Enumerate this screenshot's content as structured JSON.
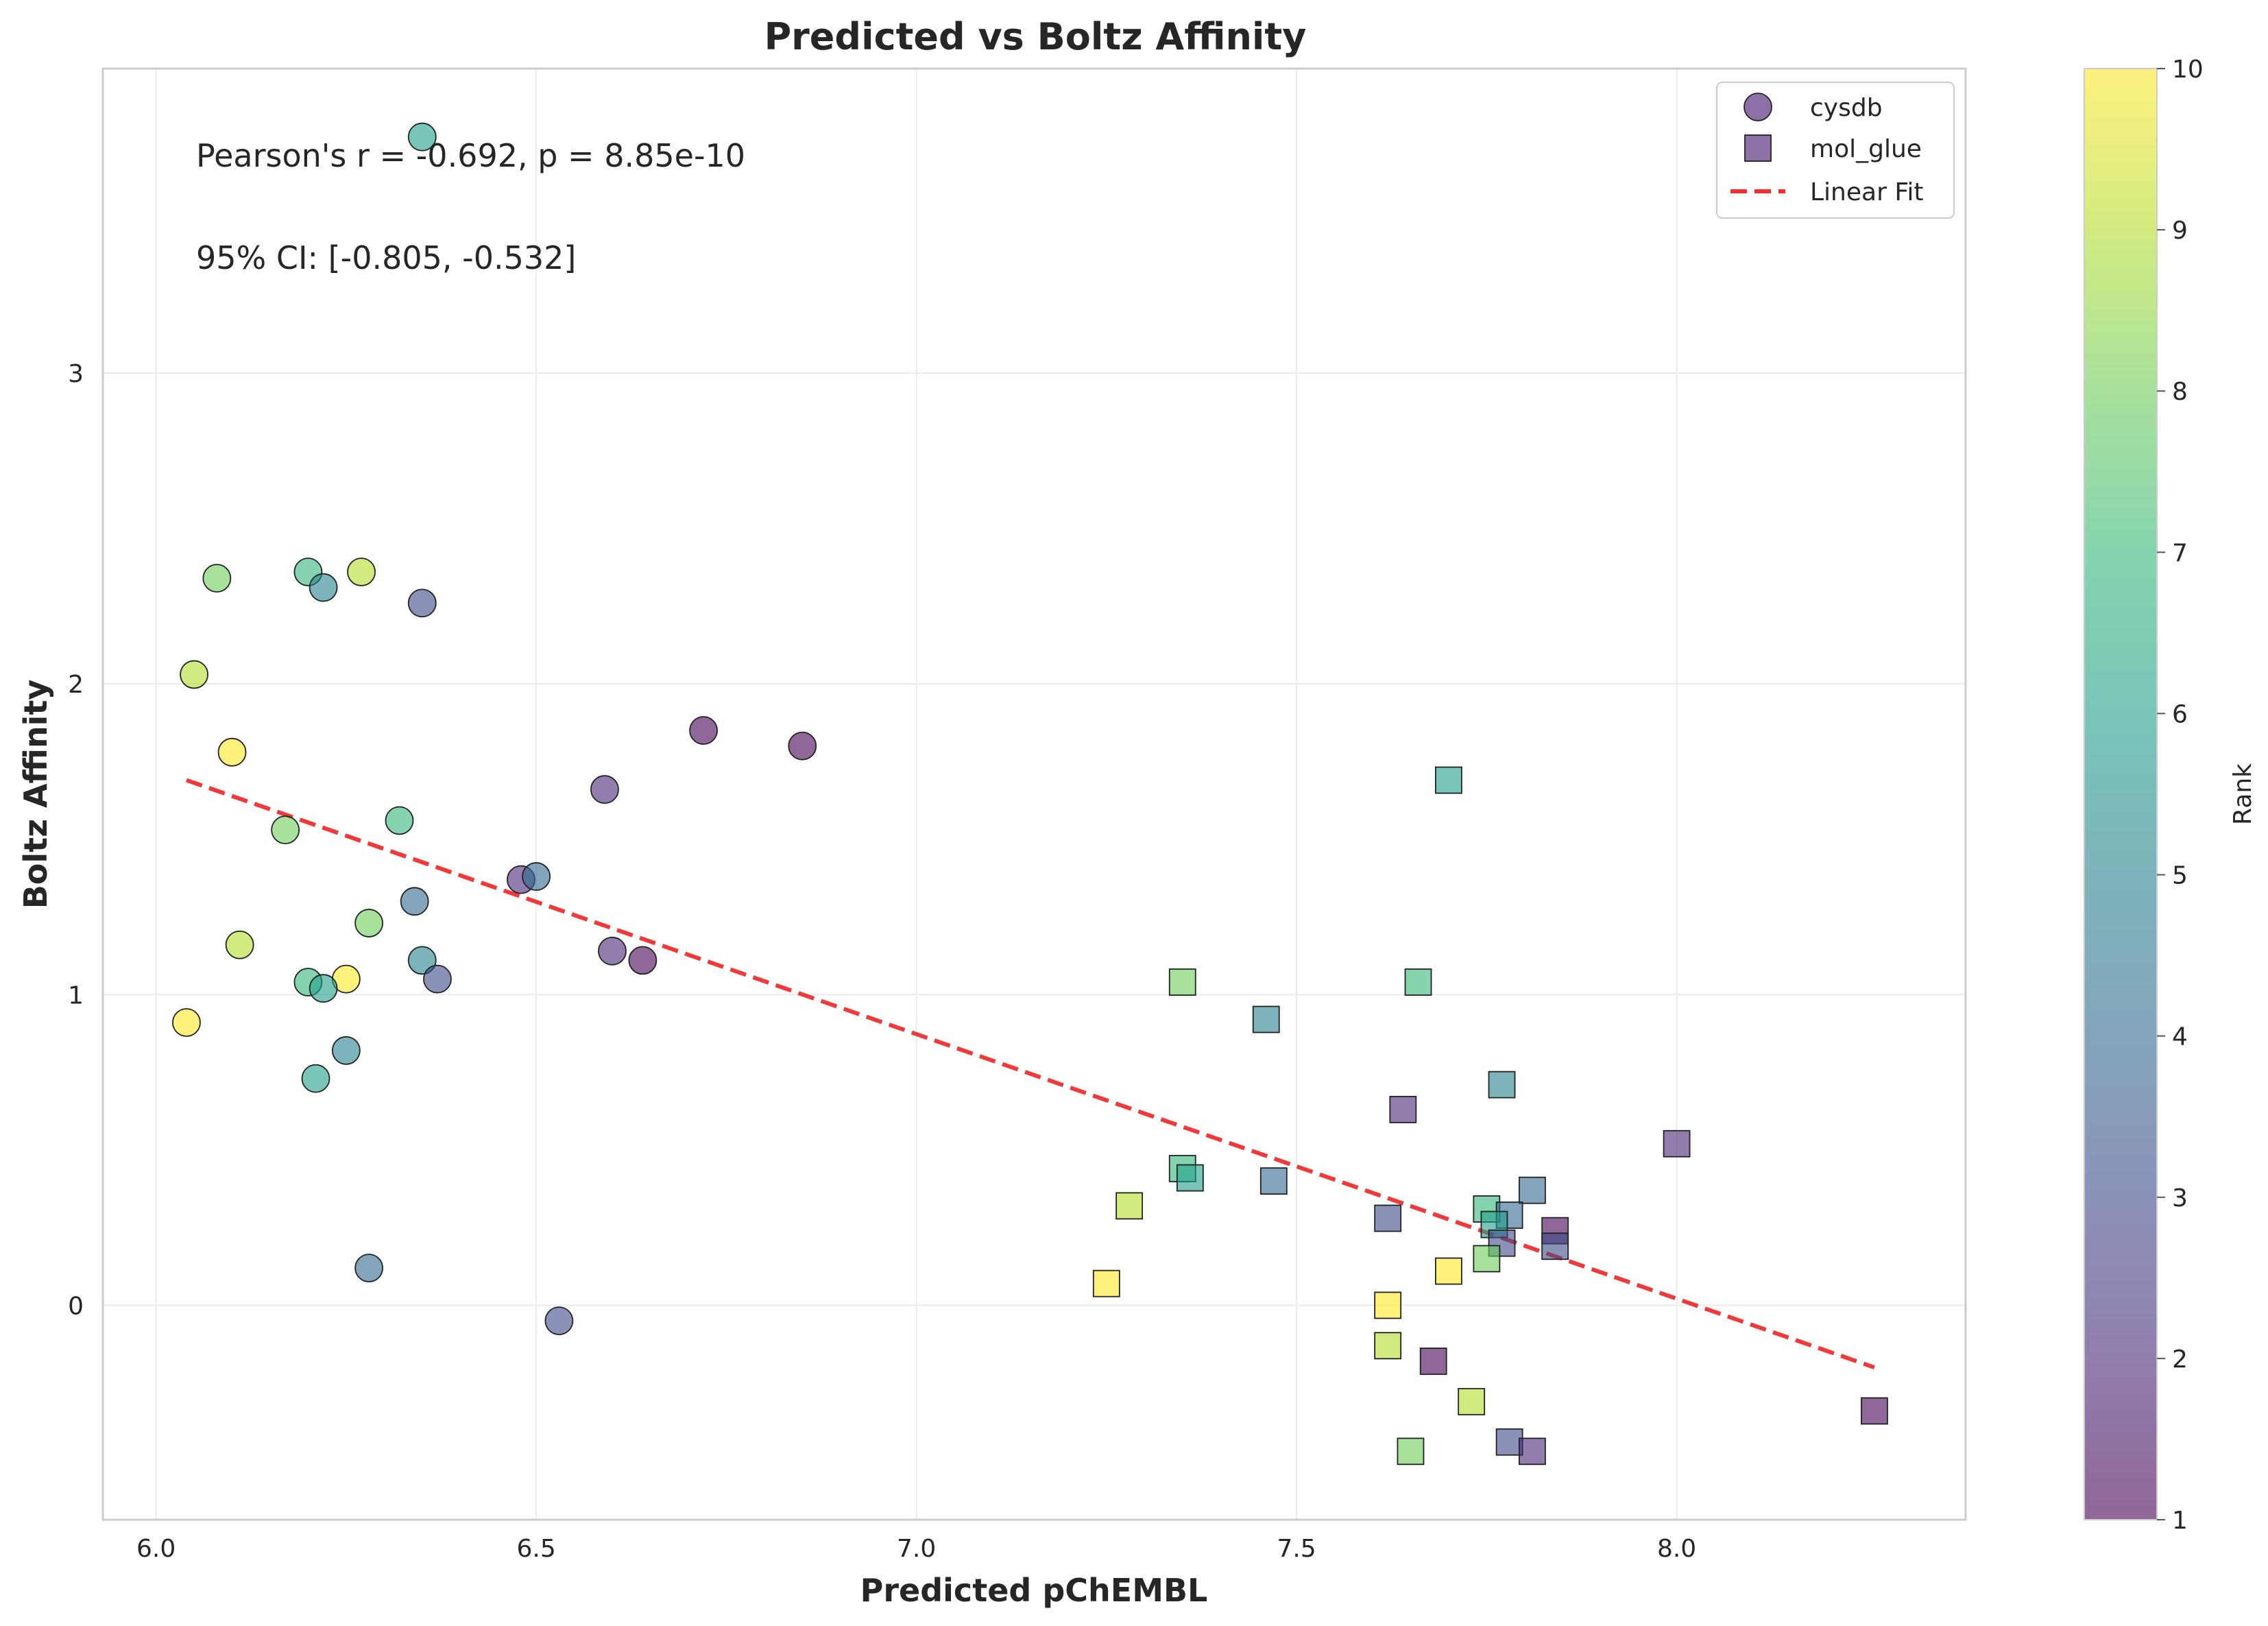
{
  "chart_data": {
    "type": "scatter",
    "title": "Predicted vs Boltz Affinity",
    "xlabel": "Predicted pChEMBL",
    "ylabel": "Boltz Affinity",
    "xlim": [
      5.93,
      8.38
    ],
    "ylim": [
      -0.69,
      3.98
    ],
    "xticks": [
      6.0,
      6.5,
      7.0,
      7.5,
      8.0
    ],
    "xtick_labels": [
      "6.0",
      "6.5",
      "7.0",
      "7.5",
      "8.0"
    ],
    "yticks": [
      0,
      1,
      2,
      3
    ],
    "ytick_labels": [
      "0",
      "1",
      "2",
      "3"
    ],
    "grid": true,
    "legend_position": "top-right",
    "annotations": [
      "Pearson's r = -0.692, p = 8.85e-10",
      "95% CI: [-0.805, -0.532]"
    ],
    "colorbar": {
      "label": "Rank",
      "range": [
        1,
        10
      ],
      "ticks": [
        "1",
        "2",
        "3",
        "4",
        "5",
        "6",
        "7",
        "8",
        "9",
        "10"
      ],
      "colormap": "viridis"
    },
    "series": [
      {
        "name": "cysdb",
        "marker": "circle",
        "points": [
          {
            "x": 6.35,
            "y": 3.76,
            "rank": 6
          },
          {
            "x": 6.08,
            "y": 2.34,
            "rank": 8
          },
          {
            "x": 6.2,
            "y": 2.36,
            "rank": 7
          },
          {
            "x": 6.22,
            "y": 2.31,
            "rank": 5
          },
          {
            "x": 6.27,
            "y": 2.36,
            "rank": 9
          },
          {
            "x": 6.35,
            "y": 2.26,
            "rank": 3
          },
          {
            "x": 6.05,
            "y": 2.03,
            "rank": 9
          },
          {
            "x": 6.1,
            "y": 1.78,
            "rank": 10
          },
          {
            "x": 6.72,
            "y": 1.85,
            "rank": 1
          },
          {
            "x": 6.85,
            "y": 1.8,
            "rank": 1
          },
          {
            "x": 6.59,
            "y": 1.66,
            "rank": 2
          },
          {
            "x": 6.17,
            "y": 1.53,
            "rank": 8
          },
          {
            "x": 6.32,
            "y": 1.56,
            "rank": 7
          },
          {
            "x": 6.48,
            "y": 1.37,
            "rank": 2
          },
          {
            "x": 6.5,
            "y": 1.38,
            "rank": 4
          },
          {
            "x": 6.34,
            "y": 1.3,
            "rank": 4
          },
          {
            "x": 6.28,
            "y": 1.23,
            "rank": 8
          },
          {
            "x": 6.11,
            "y": 1.16,
            "rank": 9
          },
          {
            "x": 6.6,
            "y": 1.14,
            "rank": 2
          },
          {
            "x": 6.64,
            "y": 1.11,
            "rank": 1
          },
          {
            "x": 6.35,
            "y": 1.11,
            "rank": 5
          },
          {
            "x": 6.37,
            "y": 1.05,
            "rank": 3
          },
          {
            "x": 6.2,
            "y": 1.04,
            "rank": 7
          },
          {
            "x": 6.25,
            "y": 1.05,
            "rank": 10
          },
          {
            "x": 6.22,
            "y": 1.02,
            "rank": 6
          },
          {
            "x": 6.04,
            "y": 0.91,
            "rank": 10
          },
          {
            "x": 6.25,
            "y": 0.82,
            "rank": 5
          },
          {
            "x": 6.21,
            "y": 0.73,
            "rank": 6
          },
          {
            "x": 6.28,
            "y": 0.12,
            "rank": 4
          },
          {
            "x": 6.53,
            "y": -0.05,
            "rank": 3
          }
        ]
      },
      {
        "name": "mol_glue",
        "marker": "square",
        "points": [
          {
            "x": 7.7,
            "y": 1.69,
            "rank": 6
          },
          {
            "x": 7.35,
            "y": 1.04,
            "rank": 8
          },
          {
            "x": 7.66,
            "y": 1.04,
            "rank": 7
          },
          {
            "x": 7.46,
            "y": 0.92,
            "rank": 5
          },
          {
            "x": 7.77,
            "y": 0.71,
            "rank": 5
          },
          {
            "x": 7.64,
            "y": 0.63,
            "rank": 2
          },
          {
            "x": 8.0,
            "y": 0.52,
            "rank": 2
          },
          {
            "x": 7.35,
            "y": 0.44,
            "rank": 7
          },
          {
            "x": 7.36,
            "y": 0.41,
            "rank": 6
          },
          {
            "x": 7.47,
            "y": 0.4,
            "rank": 4
          },
          {
            "x": 7.81,
            "y": 0.37,
            "rank": 4
          },
          {
            "x": 7.28,
            "y": 0.32,
            "rank": 9
          },
          {
            "x": 7.75,
            "y": 0.31,
            "rank": 7
          },
          {
            "x": 7.62,
            "y": 0.28,
            "rank": 3
          },
          {
            "x": 7.78,
            "y": 0.29,
            "rank": 4
          },
          {
            "x": 7.76,
            "y": 0.26,
            "rank": 6
          },
          {
            "x": 7.84,
            "y": 0.24,
            "rank": 1
          },
          {
            "x": 7.77,
            "y": 0.2,
            "rank": 3
          },
          {
            "x": 7.84,
            "y": 0.19,
            "rank": 3
          },
          {
            "x": 7.75,
            "y": 0.15,
            "rank": 8
          },
          {
            "x": 7.7,
            "y": 0.11,
            "rank": 10
          },
          {
            "x": 7.25,
            "y": 0.07,
            "rank": 10
          },
          {
            "x": 7.62,
            "y": 0.0,
            "rank": 10
          },
          {
            "x": 7.62,
            "y": -0.13,
            "rank": 9
          },
          {
            "x": 7.68,
            "y": -0.18,
            "rank": 1
          },
          {
            "x": 7.73,
            "y": -0.31,
            "rank": 9
          },
          {
            "x": 8.26,
            "y": -0.34,
            "rank": 1
          },
          {
            "x": 7.78,
            "y": -0.44,
            "rank": 3
          },
          {
            "x": 7.65,
            "y": -0.47,
            "rank": 8
          },
          {
            "x": 7.81,
            "y": -0.47,
            "rank": 2
          }
        ]
      },
      {
        "name": "Linear Fit",
        "type": "line",
        "x": [
          6.04,
          8.26
        ],
        "y": [
          1.69,
          -0.2
        ],
        "color": "#f03030"
      }
    ]
  }
}
